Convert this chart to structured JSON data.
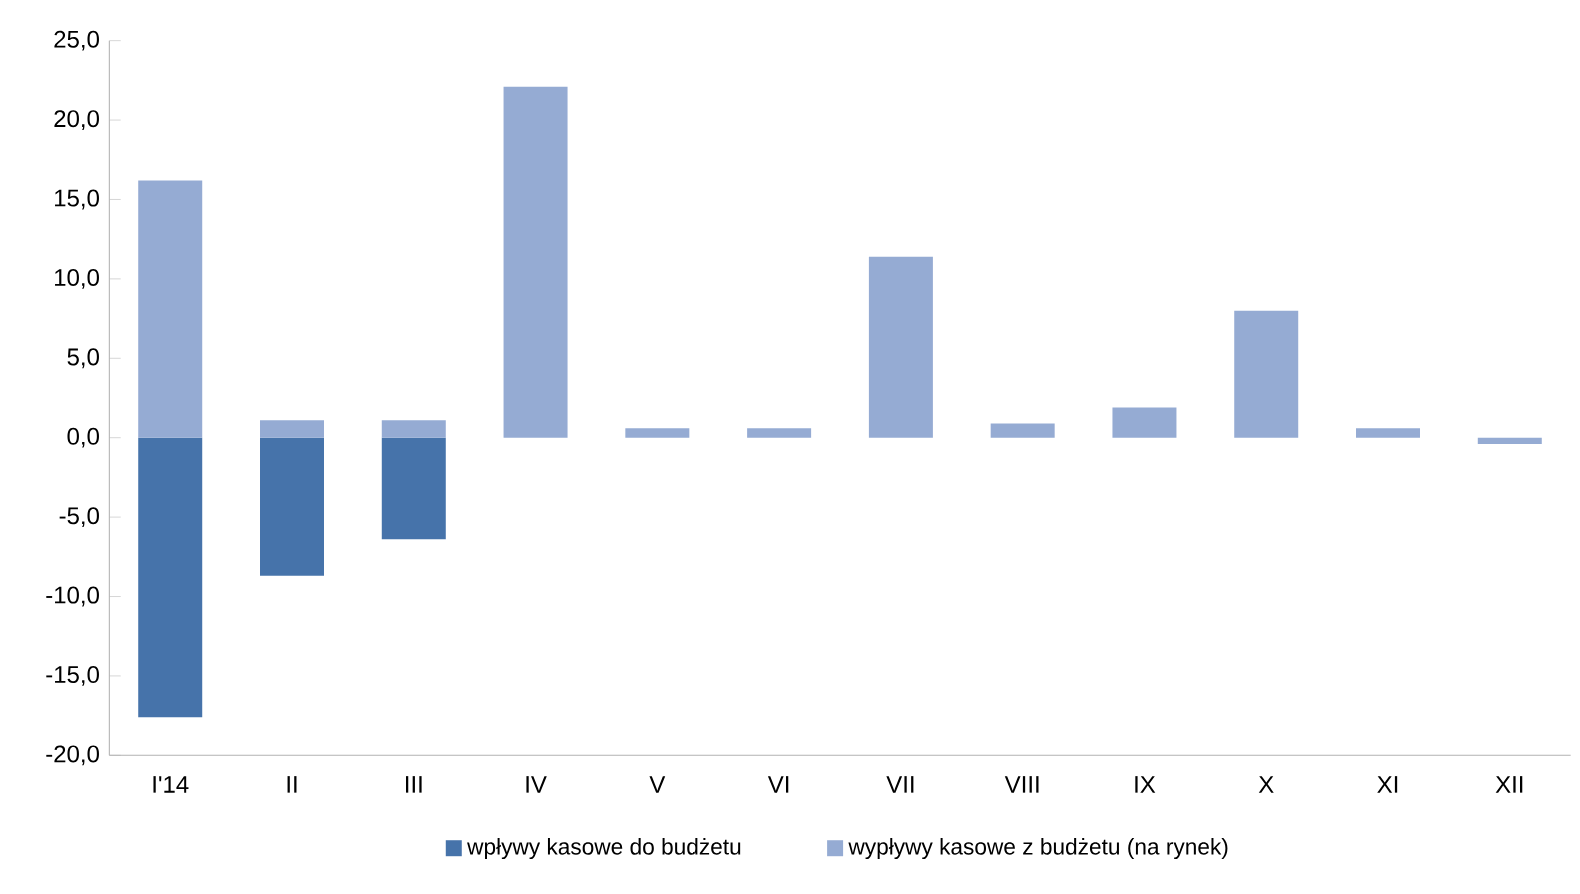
{
  "chart_data": {
    "type": "bar",
    "stacked": true,
    "categories": [
      "I'14",
      "II",
      "III",
      "IV",
      "V",
      "VI",
      "VII",
      "VIII",
      "IX",
      "X",
      "XI",
      "XII"
    ],
    "series": [
      {
        "name": "wpływy kasowe do budżetu",
        "color": "#4673aa",
        "values": [
          -17.6,
          -8.7,
          -6.4,
          null,
          null,
          null,
          null,
          null,
          null,
          null,
          null,
          null
        ]
      },
      {
        "name": "wypływy kasowe z budżetu (na rynek)",
        "color": "#95abd3",
        "values": [
          16.2,
          1.1,
          1.1,
          22.1,
          0.6,
          0.6,
          11.4,
          0.9,
          1.9,
          8.0,
          0.6,
          -0.4
        ]
      }
    ],
    "ylim": [
      -20,
      25
    ],
    "yticks": [
      {
        "value": -20,
        "label": "-20,0"
      },
      {
        "value": -15,
        "label": "-15,0"
      },
      {
        "value": -10,
        "label": "-10,0"
      },
      {
        "value": -5,
        "label": "-5,0"
      },
      {
        "value": 0,
        "label": "0,0"
      },
      {
        "value": 5,
        "label": "5,0"
      },
      {
        "value": 10,
        "label": "10,0"
      },
      {
        "value": 15,
        "label": "15,0"
      },
      {
        "value": 20,
        "label": "20,0"
      },
      {
        "value": 25,
        "label": "25,0"
      }
    ],
    "legend": "bottom"
  }
}
